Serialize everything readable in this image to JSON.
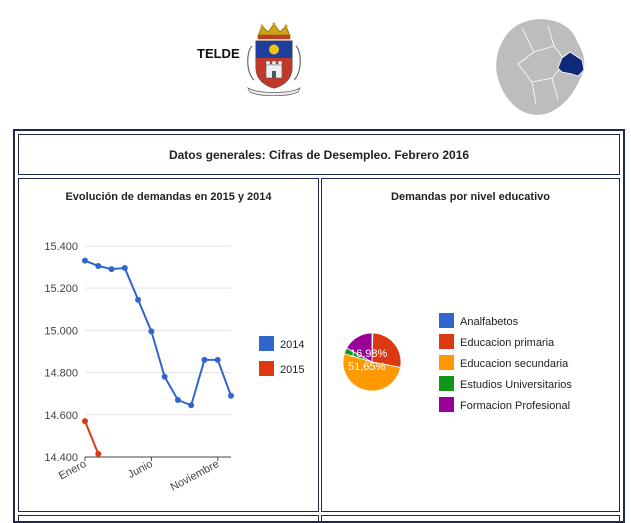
{
  "header": {
    "municipio": "TELDE"
  },
  "icons": {
    "crest": "coat-of-arms-icon",
    "island": "island-map-icon"
  },
  "colors": {
    "frame": "#1d2750",
    "series_2014": "#3366cc",
    "series_2015": "#dc3912",
    "island_fill": "#bdbdbd",
    "island_highlight": "#10287a"
  },
  "page_title": "Datos generales: Cifras de Desempleo. Febrero 2016",
  "chart_data": [
    {
      "type": "line",
      "title": "Evolución de demandas en 2015 y 2014",
      "x": [
        1,
        2,
        3,
        4,
        5,
        6,
        7,
        8,
        9,
        10,
        11,
        12
      ],
      "x_tick_labels": [
        {
          "x": 1,
          "label": "Enero"
        },
        {
          "x": 6,
          "label": "Junio"
        },
        {
          "x": 11,
          "label": "Noviembre"
        }
      ],
      "y_tick_labels": [
        "14.400",
        "14.600",
        "14.800",
        "15.000",
        "15.200",
        "15.400"
      ],
      "y_ticks": [
        14400,
        14600,
        14800,
        15000,
        15200,
        15400
      ],
      "ylim": [
        14400,
        15480
      ],
      "xlim": [
        1,
        12
      ],
      "grid": true,
      "legend_position": "right",
      "series": [
        {
          "name": "2014",
          "color": "#3366cc",
          "values": [
            15330,
            15305,
            15290,
            15295,
            15145,
            14995,
            14780,
            14670,
            14645,
            14860,
            14860,
            14690
          ]
        },
        {
          "name": "2015",
          "color": "#dc3912",
          "values": [
            14570,
            14415,
            null,
            null,
            null,
            null,
            null,
            null,
            null,
            null,
            null,
            null
          ]
        }
      ]
    },
    {
      "type": "pie",
      "title": "Demandas por nivel educativo",
      "legend_position": "right",
      "slice_labels_visible": [
        "16,98%",
        "51,65%"
      ],
      "slices": [
        {
          "label": "Analfabetos",
          "value": 0.5,
          "color": "#3366cc"
        },
        {
          "label": "Educacion primaria",
          "value": 27.5,
          "color": "#dc3912"
        },
        {
          "label": "Educacion secundaria",
          "value": 51.65,
          "color": "#ff9900"
        },
        {
          "label": "Estudios Universitarios",
          "value": 3.37,
          "color": "#109618"
        },
        {
          "label": "Formacion Profesional",
          "value": 16.98,
          "color": "#990099"
        }
      ]
    }
  ]
}
